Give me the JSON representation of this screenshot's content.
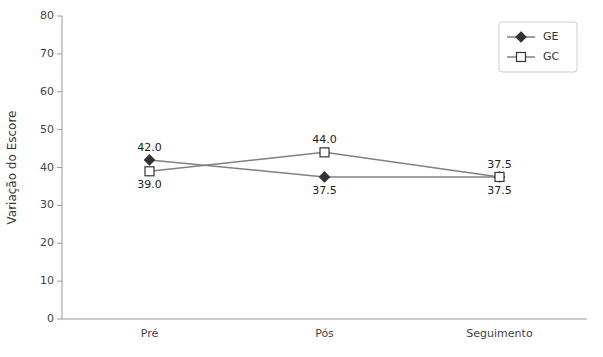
{
  "chart_data": {
    "type": "line",
    "categories": [
      "Pré",
      "Pós",
      "Seguimento"
    ],
    "series": [
      {
        "name": "GE",
        "color": "#808080",
        "marker": "diamond",
        "values": [
          42.0,
          37.5,
          37.5
        ],
        "value_labels": [
          "42.0",
          "37.5",
          "37.5"
        ]
      },
      {
        "name": "GC",
        "color": "#808080",
        "marker": "square-open",
        "values": [
          39.0,
          44.0,
          37.5
        ],
        "value_labels": [
          "39.0",
          "44.0",
          "37.5"
        ]
      }
    ],
    "ylabel": "Variação do Escore",
    "ylim": [
      0,
      80
    ],
    "yticks": [
      0,
      10,
      20,
      30,
      40,
      50,
      60,
      70,
      80
    ],
    "grid": false,
    "legend": "upper right",
    "data_labels": true
  }
}
